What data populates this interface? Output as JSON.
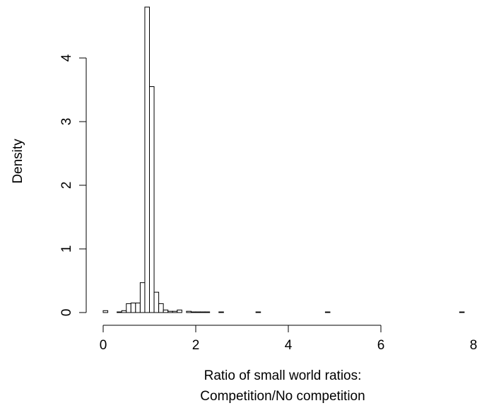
{
  "chart_data": {
    "type": "histogram",
    "xlabel": [
      "Ratio of small world ratios:",
      "Competition/No competition"
    ],
    "ylabel": "Density",
    "bins": [
      0,
      0.1,
      0.2,
      0.3,
      0.4,
      0.5,
      0.6,
      0.7,
      0.8,
      0.9,
      1,
      1.1,
      1.2,
      1.3,
      1.4,
      1.5,
      1.6,
      1.7,
      1.8,
      1.9,
      2,
      2.1,
      2.2,
      2.3,
      2.4,
      2.5,
      2.6,
      2.7,
      2.8,
      2.9,
      3,
      3.1,
      3.2,
      3.3,
      3.4,
      3.5,
      3.6,
      3.7,
      3.8,
      3.9,
      4,
      4.1,
      4.2,
      4.3,
      4.4,
      4.5,
      4.6,
      4.7,
      4.8,
      4.9,
      5,
      5.1,
      5.2,
      5.3,
      5.4,
      5.5,
      5.6,
      5.7,
      5.8,
      5.9,
      6,
      6.1,
      6.2,
      6.3,
      6.4,
      6.5,
      6.6,
      6.7,
      6.8,
      6.9,
      7,
      7.1,
      7.2,
      7.3,
      7.4,
      7.5,
      7.6,
      7.7,
      7.8
    ],
    "values": [
      0.03,
      0,
      0,
      0.01,
      0.03,
      0.14,
      0.15,
      0.15,
      0.47,
      4.8,
      3.55,
      0.32,
      0.14,
      0.04,
      0.02,
      0.02,
      0.04,
      0,
      0.02,
      0.01,
      0.01,
      0.01,
      0.01,
      0,
      0,
      0.01,
      0,
      0,
      0,
      0,
      0,
      0,
      0,
      0.01,
      0,
      0,
      0,
      0,
      0,
      0,
      0,
      0,
      0,
      0,
      0,
      0,
      0,
      0,
      0.01,
      0,
      0,
      0,
      0,
      0,
      0,
      0,
      0,
      0,
      0,
      0,
      0,
      0,
      0,
      0,
      0,
      0,
      0,
      0,
      0,
      0,
      0,
      0,
      0,
      0,
      0,
      0,
      0,
      0.01
    ],
    "color": "#ffffff",
    "xlim": [
      0,
      8
    ],
    "xticks": [
      0,
      2,
      4,
      6,
      8
    ],
    "ylim": [
      0,
      4.8
    ],
    "yticks": [
      0,
      1,
      2,
      3,
      4
    ]
  }
}
